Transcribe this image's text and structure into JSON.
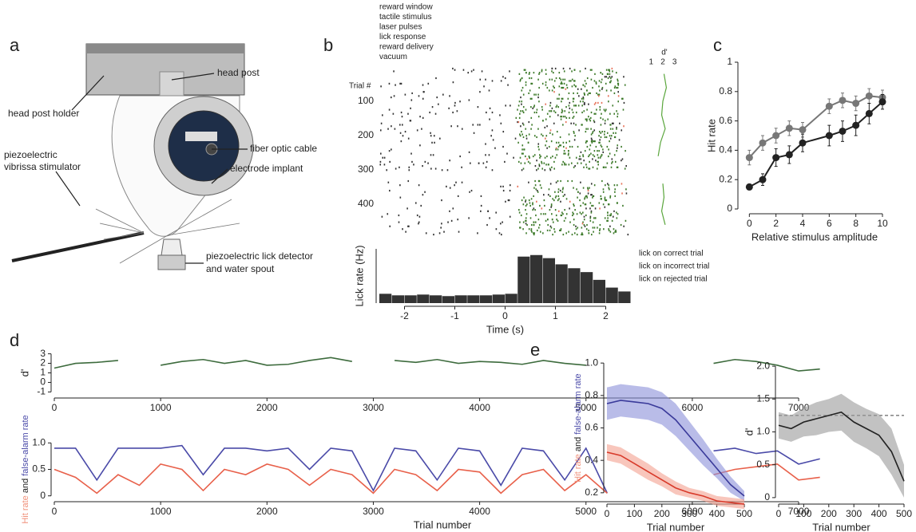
{
  "panel_labels": [
    "a",
    "b",
    "c",
    "d",
    "e"
  ],
  "diagram": {
    "labels": {
      "head_post": "head post",
      "head_post_holder": "head post holder",
      "fiber": "fiber optic cable",
      "stimulator": [
        "piezoelectric",
        "vibrissa stimulator"
      ],
      "implant": "electrode implant",
      "lick": [
        "piezoelectric lick detector",
        "and water spout"
      ]
    }
  },
  "chart_data": [
    {
      "type": "raster",
      "legend": [
        {
          "name": "reward window",
          "color": "#e8735a"
        },
        {
          "name": "tactile stimulus",
          "color": "#9a9a9a"
        },
        {
          "name": "laser pulses",
          "color": "#6fb3e0"
        },
        {
          "name": "lick response",
          "color": "#222222"
        },
        {
          "name": "reward delivery",
          "color": "#7a2a8a"
        },
        {
          "name": "vacuum",
          "color": "#8a2a4a"
        }
      ],
      "ylabel": "Trial #",
      "ylim": [
        0,
        500
      ],
      "yticks": [
        100,
        200,
        300,
        400
      ],
      "xlim": [
        -2.5,
        2.5
      ],
      "inset": {
        "label": "d'",
        "xlim": [
          0.5,
          3.5
        ],
        "xticks": [
          1,
          2,
          3
        ],
        "color": "#5aa63c",
        "trials": [
          20,
          60,
          100,
          140,
          180,
          220,
          260,
          300,
          340,
          380,
          420,
          460
        ],
        "values": [
          2.1,
          2.3,
          2.0,
          1.9,
          2.2,
          1.8,
          1.6,
          null,
          2.0,
          2.1,
          1.9,
          2.2
        ]
      },
      "lick_legend": [
        {
          "name": "lick on correct trial",
          "color": "#3d7a2a"
        },
        {
          "name": "lick on incorrect trial",
          "color": "#e8735a"
        },
        {
          "name": "lick on rejected trial",
          "color": "#c8c8c8"
        }
      ]
    },
    {
      "type": "histogram",
      "xlabel": "Time (s)",
      "ylabel": "Lick rate (Hz)",
      "color": "#333333",
      "bins": [
        -2.5,
        -2.25,
        -2,
        -1.75,
        -1.5,
        -1.25,
        -1,
        -0.75,
        -0.5,
        -0.25,
        0,
        0.25,
        0.5,
        0.75,
        1,
        1.25,
        1.5,
        1.75,
        2,
        2.25,
        2.5
      ],
      "values": [
        1.2,
        1,
        1,
        1.1,
        1,
        0.9,
        1,
        1,
        1,
        1.1,
        1.2,
        6,
        6.2,
        5.8,
        5,
        4.5,
        4,
        3,
        2,
        1.5
      ],
      "xlim": [
        -2.5,
        2.5
      ],
      "xticks": [
        -2,
        -1,
        0,
        1,
        2
      ],
      "ylim": [
        0,
        7
      ]
    },
    {
      "type": "line",
      "xlabel": "Relative stimulus amplitude",
      "ylabel": "Hit rate",
      "x": [
        0,
        1,
        2,
        3,
        4,
        6,
        7,
        8,
        9,
        10
      ],
      "xlim": [
        -0.5,
        10.3
      ],
      "xticks": [
        0,
        2,
        4,
        6,
        8,
        10
      ],
      "ylim": [
        0,
        1
      ],
      "yticks": [
        0,
        0.2,
        0.4,
        0.6,
        0.8,
        1
      ],
      "markers": true,
      "series": [
        {
          "color": "#777777",
          "values": [
            0.35,
            0.45,
            0.5,
            0.55,
            0.54,
            0.7,
            0.74,
            0.72,
            0.77,
            0.76
          ],
          "errors": [
            0.05,
            0.05,
            0.05,
            0.05,
            0.05,
            0.05,
            0.05,
            0.05,
            0.05,
            0.05
          ]
        },
        {
          "color": "#222222",
          "values": [
            0.15,
            0.2,
            0.35,
            0.37,
            0.45,
            0.5,
            0.53,
            0.57,
            0.65,
            0.73
          ],
          "errors": [
            0.02,
            0.04,
            0.06,
            0.06,
            0.06,
            0.07,
            0.07,
            0.07,
            0.07,
            0.05
          ]
        }
      ]
    },
    {
      "type": "line",
      "ylabel": "d'",
      "x": [
        0,
        200,
        400,
        600,
        800,
        1000,
        1200,
        1400,
        1600,
        1800,
        2000,
        2200,
        2400,
        2600,
        2800,
        3000,
        3200,
        3400,
        3600,
        3800,
        4000,
        4200,
        4400,
        4600,
        4800,
        5000,
        5200,
        5400,
        5600,
        5800,
        6000,
        6200,
        6400,
        6600,
        6800,
        7000,
        7200
      ],
      "xlim": [
        0,
        7300
      ],
      "xticks": [
        0,
        1000,
        2000,
        3000,
        4000,
        5000,
        6000,
        7000
      ],
      "ylim": [
        -1.3,
        3.3
      ],
      "yticks": [
        -1,
        0,
        1,
        2,
        3
      ],
      "series": [
        {
          "color": "#3d6b3d",
          "values": [
            1.5,
            2.0,
            2.1,
            2.3,
            null,
            1.8,
            2.2,
            2.4,
            2.0,
            2.3,
            1.8,
            1.9,
            2.3,
            2.6,
            2.2,
            null,
            2.3,
            2.1,
            2.4,
            2.0,
            2.2,
            2.1,
            1.9,
            2.3,
            2.0,
            1.8,
            null,
            null,
            null,
            1.6,
            null,
            2.0,
            2.4,
            2.2,
            1.8,
            1.2,
            1.4
          ]
        }
      ]
    },
    {
      "type": "line",
      "xlabel": "Trial number",
      "ylabel_parts": [
        {
          "text": "Hit rate",
          "color": "#f0907a"
        },
        {
          "text": " and ",
          "color": "#222222"
        },
        {
          "text": "false-alarm rate",
          "color": "#4a4aa8"
        }
      ],
      "x": [
        0,
        200,
        400,
        600,
        800,
        1000,
        1200,
        1400,
        1600,
        1800,
        2000,
        2200,
        2400,
        2600,
        2800,
        3000,
        3200,
        3400,
        3600,
        3800,
        4000,
        4200,
        4400,
        4600,
        4800,
        5000,
        5200,
        5400,
        5600,
        5800,
        6000,
        6200,
        6400,
        6600,
        6800,
        7000,
        7200
      ],
      "xlim": [
        0,
        7300
      ],
      "xticks": [
        0,
        1000,
        2000,
        3000,
        4000,
        5000,
        6000,
        7000
      ],
      "ylim": [
        -0.05,
        1.05
      ],
      "yticks": [
        0,
        0.5,
        {
          "value": 1,
          "label": "1.0"
        }
      ],
      "series": [
        {
          "color": "#4a4aa8",
          "values": [
            0.9,
            0.9,
            0.3,
            0.9,
            0.9,
            0.9,
            0.95,
            0.4,
            0.9,
            0.9,
            0.85,
            0.9,
            0.5,
            0.9,
            0.85,
            0.1,
            0.9,
            0.85,
            0.3,
            0.9,
            0.85,
            0.2,
            0.9,
            0.85,
            0.3,
            0.9,
            0.05,
            null,
            null,
            0.8,
            null,
            0.85,
            0.9,
            0.8,
            0.85,
            0.6,
            0.7
          ]
        },
        {
          "color": "#e8604a",
          "values": [
            0.5,
            0.35,
            0.05,
            0.4,
            0.2,
            0.6,
            0.5,
            0.1,
            0.5,
            0.4,
            0.6,
            0.5,
            0.2,
            0.5,
            0.4,
            0.05,
            0.5,
            0.4,
            0.1,
            0.5,
            0.45,
            0.05,
            0.4,
            0.5,
            0.1,
            0.4,
            0.05,
            null,
            null,
            0.1,
            null,
            0.4,
            0.5,
            0.55,
            0.6,
            0.3,
            0.35
          ]
        }
      ]
    },
    {
      "type": "line",
      "xlabel": "Trial number",
      "ylabel_parts": [
        {
          "text": "Hit rate",
          "color": "#f0907a"
        },
        {
          "text": " and ",
          "color": "#222222"
        },
        {
          "text": "false-alarm rate",
          "color": "#4a4aa8"
        }
      ],
      "x": [
        0,
        50,
        100,
        150,
        200,
        250,
        300,
        350,
        400,
        450,
        500
      ],
      "xlim": [
        0,
        500
      ],
      "xticks": [
        0,
        100,
        200,
        300,
        400,
        500
      ],
      "ylim": [
        0.15,
        1.05
      ],
      "yticks": [
        0.2,
        0.4,
        0.6,
        0.8,
        {
          "value": 1,
          "label": "1.0"
        }
      ],
      "band": true,
      "series": [
        {
          "color": "#3a3a9a",
          "band_color": "#8a8fd8",
          "values": [
            0.75,
            0.77,
            0.76,
            0.75,
            0.72,
            0.65,
            0.55,
            0.45,
            0.35,
            0.25,
            0.18
          ],
          "errors": [
            0.1,
            0.1,
            0.1,
            0.1,
            0.1,
            0.1,
            0.09,
            0.08,
            0.06,
            0.05,
            0.03
          ]
        },
        {
          "color": "#d83a2a",
          "band_color": "#f4a090",
          "values": [
            0.45,
            0.43,
            0.38,
            0.33,
            0.28,
            0.23,
            0.2,
            0.18,
            0.15,
            0.14,
            0.13
          ],
          "errors": [
            0.05,
            0.05,
            0.05,
            0.05,
            0.04,
            0.04,
            0.03,
            0.03,
            0.03,
            0.03,
            0.03
          ]
        }
      ]
    },
    {
      "type": "line",
      "xlabel": "Trial number",
      "ylabel": "d'",
      "x": [
        0,
        50,
        100,
        150,
        200,
        250,
        300,
        350,
        400,
        450,
        500
      ],
      "xlim": [
        0,
        500
      ],
      "xticks": [
        0,
        100,
        200,
        300,
        400,
        500
      ],
      "ylim": [
        -0.05,
        2.05
      ],
      "yticks": [
        0,
        {
          "value": 0.5,
          "label": "0.5"
        },
        {
          "value": 1,
          "label": "1.0"
        },
        {
          "value": 1.5,
          "label": "1.5"
        },
        {
          "value": 2,
          "label": "2.0"
        }
      ],
      "band": true,
      "reference_line": 1.25,
      "series": [
        {
          "color": "#222222",
          "band_color": "#999999",
          "values": [
            1.1,
            1.05,
            1.15,
            1.2,
            1.25,
            1.3,
            1.15,
            1.05,
            0.95,
            0.7,
            0.25
          ],
          "errors": [
            0.2,
            0.2,
            0.22,
            0.25,
            0.25,
            0.28,
            0.3,
            0.3,
            0.32,
            0.35,
            0.25
          ]
        }
      ]
    }
  ]
}
